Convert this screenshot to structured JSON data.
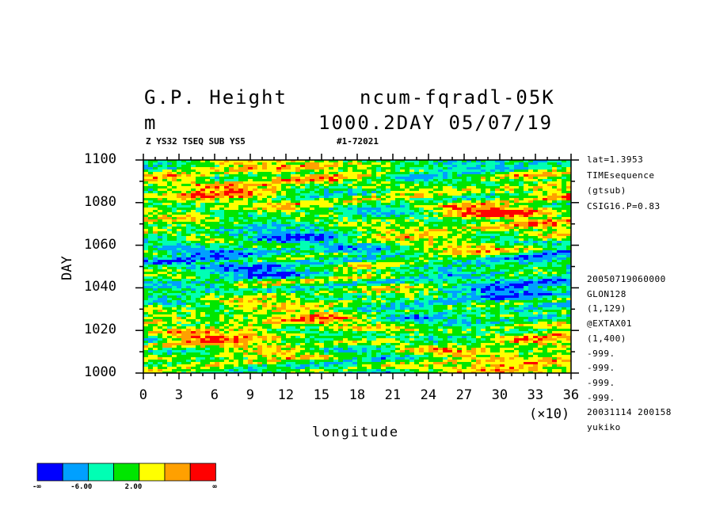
{
  "header": {
    "title_left": "G.P. Height",
    "title_right": "ncum-fqradl-05K",
    "unit": "m",
    "subtitle_right": "1000.2DAY 05/07/19",
    "sub_left": "Z YS32 TSEQ SUB YS5",
    "sub_right": "#1-72021"
  },
  "side_info": {
    "top": [
      "lat=1.3953",
      "TIMEsequence",
      "(gtsub)",
      "CSIG16.P=0.83"
    ],
    "bottom": [
      "20050719060000",
      "GLON128",
      "(1,129)",
      "@EXTAX01",
      "(1,400)",
      "-999.",
      "-999.",
      "-999.",
      "-999.",
      "20031114 200158",
      "yukiko"
    ]
  },
  "chart_data": {
    "type": "heatmap",
    "xlabel": "longitude",
    "x_multiplier_label": "(×10)",
    "ylabel": "DAY",
    "xlim": [
      0,
      36
    ],
    "ylim": [
      1000,
      1100
    ],
    "x_ticks": [
      "0",
      "3",
      "6",
      "9",
      "12",
      "15",
      "18",
      "21",
      "24",
      "27",
      "30",
      "33",
      "36"
    ],
    "y_ticks": [
      "1000",
      "1020",
      "1040",
      "1060",
      "1080",
      "1100"
    ],
    "colorbar": {
      "colors": [
        "#0000ff",
        "#00a0ff",
        "#00ffb4",
        "#00e600",
        "#ffff00",
        "#ffa000",
        "#ff0000"
      ],
      "labels": [
        "-∞",
        "-6.00",
        "2.00",
        "∞"
      ]
    }
  }
}
